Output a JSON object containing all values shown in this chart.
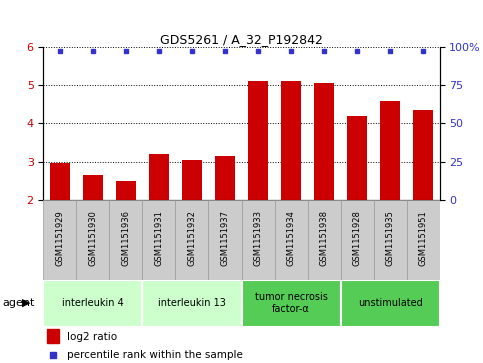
{
  "title": "GDS5261 / A_32_P192842",
  "samples": [
    "GSM1151929",
    "GSM1151930",
    "GSM1151936",
    "GSM1151931",
    "GSM1151932",
    "GSM1151937",
    "GSM1151933",
    "GSM1151934",
    "GSM1151938",
    "GSM1151928",
    "GSM1151935",
    "GSM1151951"
  ],
  "log2_values": [
    2.95,
    2.65,
    2.5,
    3.2,
    3.05,
    3.15,
    5.1,
    5.1,
    5.05,
    4.2,
    4.6,
    4.35
  ],
  "bar_color": "#cc0000",
  "dot_color": "#3333cc",
  "ylim_left": [
    2,
    6
  ],
  "ylim_right": [
    0,
    100
  ],
  "yticks_left": [
    2,
    3,
    4,
    5,
    6
  ],
  "yticks_right": [
    0,
    25,
    50,
    75,
    100
  ],
  "ytick_labels_right": [
    "0",
    "25",
    "50",
    "75",
    "100%"
  ],
  "agent_groups": [
    {
      "label": "interleukin 4",
      "start": 0,
      "end": 3,
      "color": "#ccffcc"
    },
    {
      "label": "interleukin 13",
      "start": 3,
      "end": 6,
      "color": "#ccffcc"
    },
    {
      "label": "tumor necrosis\nfactor-α",
      "start": 6,
      "end": 9,
      "color": "#55cc55"
    },
    {
      "label": "unstimulated",
      "start": 9,
      "end": 12,
      "color": "#55cc55"
    }
  ],
  "legend_bar_label": "log2 ratio",
  "legend_dot_label": "percentile rank within the sample",
  "agent_label": "agent",
  "background_color": "#ffffff",
  "tick_label_color_left": "#cc0000",
  "tick_label_color_right": "#3333cc",
  "sample_box_color": "#cccccc",
  "sample_box_edge": "#999999"
}
